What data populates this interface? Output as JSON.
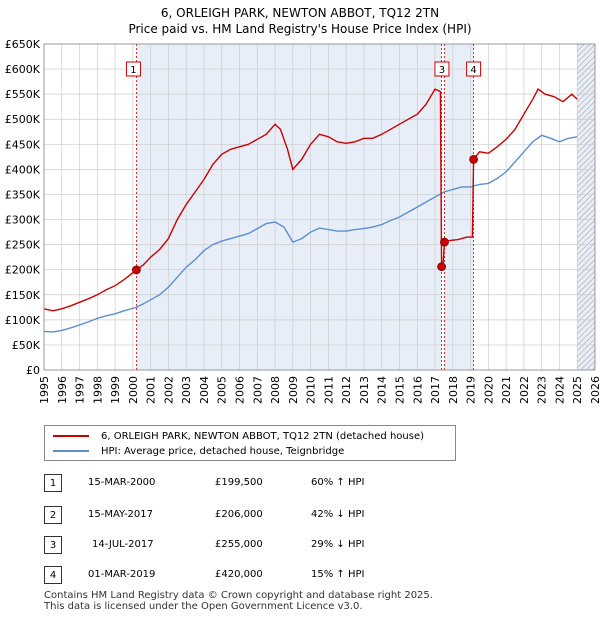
{
  "title": "6, ORLEIGH PARK, NEWTON ABBOT, TQ12 2TN",
  "subtitle": "Price paid vs. HM Land Registry's House Price Index (HPI)",
  "colors": {
    "property": "#cc0000",
    "hpi": "#5b8fd0",
    "shade": "#e8eef8",
    "marker_line": "#cc0000"
  },
  "legend": {
    "property_label": "6, ORLEIGH PARK, NEWTON ABBOT, TQ12 2TN (detached house)",
    "hpi_label": "HPI: Average price, detached house, Teignbridge"
  },
  "sales": [
    {
      "id": "1",
      "date": "15-MAR-2000",
      "price": "£199,500",
      "hpi": "60% ↑ HPI"
    },
    {
      "id": "2",
      "date": "15-MAY-2017",
      "price": "£206,000",
      "hpi": "42% ↓ HPI"
    },
    {
      "id": "3",
      "date": "14-JUL-2017",
      "price": "£255,000",
      "hpi": "29% ↓ HPI"
    },
    {
      "id": "4",
      "date": "01-MAR-2019",
      "price": "£420,000",
      "hpi": "15% ↑ HPI"
    }
  ],
  "footer": {
    "line1": "Contains HM Land Registry data © Crown copyright and database right 2025.",
    "line2": "This data is licensed under the Open Government Licence v3.0."
  },
  "chart_data": {
    "type": "line",
    "title": "6, ORLEIGH PARK, NEWTON ABBOT, TQ12 2TN",
    "subtitle": "Price paid vs. HM Land Registry's House Price Index (HPI)",
    "xlim": [
      1995,
      2026
    ],
    "ylim": [
      0,
      650000
    ],
    "x_ticks": [
      1995,
      1996,
      1997,
      1998,
      1999,
      2000,
      2001,
      2002,
      2003,
      2004,
      2005,
      2006,
      2007,
      2008,
      2009,
      2010,
      2011,
      2012,
      2013,
      2014,
      2015,
      2016,
      2017,
      2018,
      2019,
      2020,
      2021,
      2022,
      2023,
      2024,
      2025,
      2026
    ],
    "y_ticks": [
      0,
      50000,
      100000,
      150000,
      200000,
      250000,
      300000,
      350000,
      400000,
      450000,
      500000,
      550000,
      600000,
      650000
    ],
    "y_tick_labels": [
      "£0",
      "£50K",
      "£100K",
      "£150K",
      "£200K",
      "£250K",
      "£300K",
      "£350K",
      "£400K",
      "£450K",
      "£500K",
      "£550K",
      "£600K",
      "£650K"
    ],
    "grid": true,
    "shaded_ranges": [
      [
        2000.2,
        2017.37
      ],
      [
        2017.53,
        2019.17
      ],
      [
        2025.0,
        2026.0
      ]
    ],
    "hatched_range": [
      2025.0,
      2026.0
    ],
    "sale_markers": [
      {
        "label": "1",
        "x": 2000.2,
        "y": 199500
      },
      {
        "label": "2",
        "x": 2017.37,
        "y": 206000
      },
      {
        "label": "3",
        "x": 2017.53,
        "y": 255000
      },
      {
        "label": "4",
        "x": 2019.17,
        "y": 420000
      }
    ],
    "series": [
      {
        "name": "6, ORLEIGH PARK, NEWTON ABBOT, TQ12 2TN (detached house)",
        "color": "#cc0000",
        "points": [
          [
            1995.0,
            122000
          ],
          [
            1995.5,
            118000
          ],
          [
            1996.0,
            122000
          ],
          [
            1996.5,
            128000
          ],
          [
            1997.0,
            135000
          ],
          [
            1997.5,
            142000
          ],
          [
            1998.0,
            150000
          ],
          [
            1998.5,
            160000
          ],
          [
            1999.0,
            168000
          ],
          [
            1999.5,
            180000
          ],
          [
            2000.2,
            199500
          ],
          [
            2000.6,
            210000
          ],
          [
            2001.0,
            225000
          ],
          [
            2001.5,
            240000
          ],
          [
            2002.0,
            262000
          ],
          [
            2002.5,
            300000
          ],
          [
            2003.0,
            330000
          ],
          [
            2003.5,
            355000
          ],
          [
            2004.0,
            380000
          ],
          [
            2004.5,
            410000
          ],
          [
            2005.0,
            430000
          ],
          [
            2005.5,
            440000
          ],
          [
            2006.0,
            445000
          ],
          [
            2006.5,
            450000
          ],
          [
            2007.0,
            460000
          ],
          [
            2007.5,
            470000
          ],
          [
            2008.0,
            490000
          ],
          [
            2008.3,
            480000
          ],
          [
            2008.7,
            440000
          ],
          [
            2009.0,
            400000
          ],
          [
            2009.5,
            420000
          ],
          [
            2010.0,
            450000
          ],
          [
            2010.5,
            470000
          ],
          [
            2011.0,
            465000
          ],
          [
            2011.5,
            455000
          ],
          [
            2012.0,
            452000
          ],
          [
            2012.5,
            455000
          ],
          [
            2013.0,
            462000
          ],
          [
            2013.5,
            462000
          ],
          [
            2014.0,
            470000
          ],
          [
            2014.5,
            480000
          ],
          [
            2015.0,
            490000
          ],
          [
            2015.5,
            500000
          ],
          [
            2016.0,
            510000
          ],
          [
            2016.5,
            530000
          ],
          [
            2017.0,
            560000
          ],
          [
            2017.3,
            555000
          ],
          [
            2017.37,
            206000
          ],
          [
            2017.45,
            210000
          ],
          [
            2017.53,
            255000
          ],
          [
            2017.8,
            258000
          ],
          [
            2018.3,
            260000
          ],
          [
            2018.8,
            265000
          ],
          [
            2019.1,
            265000
          ],
          [
            2019.17,
            420000
          ],
          [
            2019.5,
            435000
          ],
          [
            2020.0,
            432000
          ],
          [
            2020.5,
            445000
          ],
          [
            2021.0,
            460000
          ],
          [
            2021.5,
            480000
          ],
          [
            2022.0,
            510000
          ],
          [
            2022.5,
            540000
          ],
          [
            2022.8,
            560000
          ],
          [
            2023.2,
            550000
          ],
          [
            2023.7,
            545000
          ],
          [
            2024.2,
            535000
          ],
          [
            2024.7,
            550000
          ],
          [
            2025.0,
            540000
          ]
        ]
      },
      {
        "name": "HPI: Average price, detached house, Teignbridge",
        "color": "#5b8fd0",
        "points": [
          [
            1995.0,
            77000
          ],
          [
            1995.5,
            76000
          ],
          [
            1996.0,
            79000
          ],
          [
            1996.5,
            84000
          ],
          [
            1997.0,
            90000
          ],
          [
            1997.5,
            96000
          ],
          [
            1998.0,
            103000
          ],
          [
            1998.5,
            108000
          ],
          [
            1999.0,
            112000
          ],
          [
            1999.5,
            118000
          ],
          [
            2000.2,
            125000
          ],
          [
            2000.6,
            132000
          ],
          [
            2001.0,
            140000
          ],
          [
            2001.5,
            150000
          ],
          [
            2002.0,
            165000
          ],
          [
            2002.5,
            185000
          ],
          [
            2003.0,
            205000
          ],
          [
            2003.5,
            220000
          ],
          [
            2004.0,
            238000
          ],
          [
            2004.5,
            250000
          ],
          [
            2005.0,
            257000
          ],
          [
            2005.5,
            262000
          ],
          [
            2006.0,
            267000
          ],
          [
            2006.5,
            272000
          ],
          [
            2007.0,
            282000
          ],
          [
            2007.5,
            292000
          ],
          [
            2008.0,
            295000
          ],
          [
            2008.5,
            285000
          ],
          [
            2009.0,
            255000
          ],
          [
            2009.5,
            262000
          ],
          [
            2010.0,
            275000
          ],
          [
            2010.5,
            283000
          ],
          [
            2011.0,
            280000
          ],
          [
            2011.5,
            277000
          ],
          [
            2012.0,
            277000
          ],
          [
            2012.5,
            280000
          ],
          [
            2013.0,
            282000
          ],
          [
            2013.5,
            285000
          ],
          [
            2014.0,
            290000
          ],
          [
            2014.5,
            298000
          ],
          [
            2015.0,
            305000
          ],
          [
            2015.5,
            315000
          ],
          [
            2016.0,
            325000
          ],
          [
            2016.5,
            335000
          ],
          [
            2017.0,
            345000
          ],
          [
            2017.5,
            355000
          ],
          [
            2018.0,
            360000
          ],
          [
            2018.5,
            365000
          ],
          [
            2019.0,
            365000
          ],
          [
            2019.5,
            370000
          ],
          [
            2020.0,
            372000
          ],
          [
            2020.5,
            382000
          ],
          [
            2021.0,
            395000
          ],
          [
            2021.5,
            415000
          ],
          [
            2022.0,
            435000
          ],
          [
            2022.5,
            455000
          ],
          [
            2023.0,
            468000
          ],
          [
            2023.5,
            462000
          ],
          [
            2024.0,
            455000
          ],
          [
            2024.5,
            462000
          ],
          [
            2025.0,
            465000
          ]
        ]
      }
    ]
  }
}
